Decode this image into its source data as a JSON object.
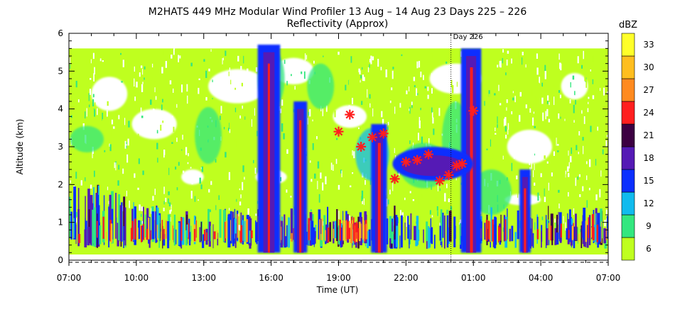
{
  "chart_data": {
    "type": "heatmap",
    "title": "M2HATS 449 MHz Modular Wind Profiler  13 Aug – 14 Aug 23 Days 225 – 226",
    "subtitle": "Reflectivity (Approx)",
    "xlabel": "Time (UT)",
    "ylabel": "Altitude (km)",
    "x_ticks": [
      "07:00",
      "10:00",
      "13:00",
      "16:00",
      "19:00",
      "22:00",
      "01:00",
      "04:00",
      "07:00"
    ],
    "x_range_hours": [
      0,
      24
    ],
    "y_ticks": [
      "0",
      "1",
      "2",
      "3",
      "4",
      "5",
      "6"
    ],
    "ylim": [
      0,
      6
    ],
    "day_marker": {
      "label": "Day 226",
      "x_hours": 17
    },
    "colorbar": {
      "label": "dBZ",
      "ticks": [
        "6",
        "9",
        "12",
        "15",
        "18",
        "21",
        "24",
        "27",
        "30",
        "33"
      ],
      "colors": [
        "#bfff1f",
        "#33e77f",
        "#11bbee",
        "#0b2fff",
        "#551ab5",
        "#3c0042",
        "#ff1f1f",
        "#ff8a1f",
        "#ffbe1f",
        "#ffff2a"
      ]
    },
    "markers": {
      "symbol": "red asterisk",
      "color": "#ff1f1f",
      "points": [
        {
          "x_hours": 12.0,
          "alt_km": 3.4
        },
        {
          "x_hours": 12.5,
          "alt_km": 3.85
        },
        {
          "x_hours": 13.0,
          "alt_km": 3.0
        },
        {
          "x_hours": 13.5,
          "alt_km": 3.25
        },
        {
          "x_hours": 14.0,
          "alt_km": 3.35
        },
        {
          "x_hours": 14.5,
          "alt_km": 2.15
        },
        {
          "x_hours": 15.0,
          "alt_km": 2.6
        },
        {
          "x_hours": 15.5,
          "alt_km": 2.65
        },
        {
          "x_hours": 16.0,
          "alt_km": 2.8
        },
        {
          "x_hours": 16.5,
          "alt_km": 2.1
        },
        {
          "x_hours": 16.9,
          "alt_km": 2.25
        },
        {
          "x_hours": 17.25,
          "alt_km": 2.5
        },
        {
          "x_hours": 17.5,
          "alt_km": 2.55
        },
        {
          "x_hours": 18.0,
          "alt_km": 3.95
        }
      ]
    },
    "grid": false
  }
}
